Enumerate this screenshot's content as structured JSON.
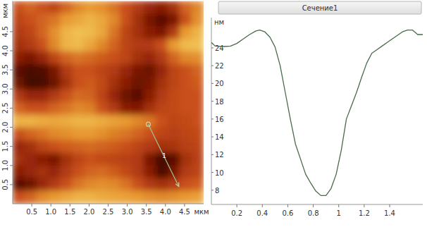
{
  "chart_data": [
    {
      "type": "heatmap",
      "xlabel": "мкм",
      "ylabel": "мкм",
      "xlim": [
        0,
        5
      ],
      "ylim": [
        0,
        5.3
      ],
      "xticks": [
        0.5,
        {
          "value": 1,
          "label": "1.0"
        },
        1.5,
        {
          "value": 2,
          "label": "2.0"
        },
        2.5,
        {
          "value": 3,
          "label": "3.0"
        },
        3.5,
        {
          "value": 4,
          "label": "4.0"
        },
        4.5
      ],
      "yticks": [
        0.5,
        {
          "value": 1,
          "label": "1.0"
        },
        1.5,
        {
          "value": 2,
          "label": "2.0"
        },
        2.5,
        {
          "value": 3,
          "label": "3.0"
        },
        3.5,
        {
          "value": 4,
          "label": "4.0"
        },
        4.5
      ],
      "cells": [
        [
          55,
          60,
          55,
          50,
          60,
          70,
          75,
          72,
          65,
          55,
          45,
          35,
          30,
          40,
          60,
          70
        ],
        [
          50,
          55,
          60,
          65,
          75,
          80,
          85,
          80,
          70,
          55,
          40,
          25,
          15,
          25,
          55,
          72
        ],
        [
          45,
          50,
          60,
          72,
          85,
          90,
          88,
          80,
          65,
          50,
          40,
          30,
          25,
          45,
          75,
          85
        ],
        [
          40,
          45,
          55,
          70,
          85,
          88,
          80,
          70,
          60,
          50,
          45,
          45,
          55,
          75,
          88,
          90
        ],
        [
          30,
          25,
          35,
          50,
          60,
          65,
          62,
          58,
          55,
          50,
          40,
          35,
          45,
          60,
          70,
          72
        ],
        [
          15,
          10,
          12,
          25,
          45,
          55,
          55,
          50,
          45,
          35,
          25,
          20,
          35,
          50,
          55,
          60
        ],
        [
          20,
          8,
          10,
          20,
          40,
          55,
          58,
          52,
          40,
          30,
          20,
          25,
          40,
          50,
          55,
          58
        ],
        [
          45,
          35,
          35,
          45,
          55,
          62,
          60,
          50,
          35,
          20,
          15,
          30,
          45,
          52,
          55,
          55
        ],
        [
          60,
          55,
          55,
          60,
          65,
          70,
          68,
          55,
          45,
          30,
          28,
          40,
          50,
          52,
          55,
          55
        ],
        [
          85,
          85,
          82,
          80,
          82,
          85,
          85,
          82,
          78,
          75,
          70,
          65,
          55,
          50,
          52,
          55
        ],
        [
          55,
          60,
          65,
          70,
          72,
          75,
          75,
          72,
          68,
          65,
          60,
          55,
          50,
          48,
          50,
          52
        ],
        [
          35,
          40,
          50,
          55,
          58,
          60,
          62,
          60,
          58,
          55,
          50,
          45,
          40,
          42,
          48,
          50
        ],
        [
          40,
          35,
          30,
          25,
          40,
          50,
          55,
          52,
          50,
          48,
          45,
          25,
          8,
          15,
          40,
          48
        ],
        [
          30,
          35,
          40,
          35,
          45,
          55,
          60,
          62,
          58,
          52,
          45,
          30,
          10,
          25,
          45,
          50
        ],
        [
          15,
          20,
          35,
          45,
          55,
          65,
          70,
          72,
          70,
          65,
          55,
          45,
          40,
          45,
          55,
          58
        ],
        [
          55,
          60,
          70,
          75,
          80,
          85,
          85,
          82,
          80,
          78,
          75,
          72,
          70,
          72,
          75,
          78
        ]
      ],
      "annotations": [
        {
          "text": "1",
          "x": [
            3.55,
            4.35
          ],
          "y": [
            2.08,
            0.45
          ]
        }
      ]
    },
    {
      "type": "line",
      "title": "Сечение1",
      "ylabel": "нм",
      "color": "#4a6a4a",
      "x": [
        0,
        0.03,
        0.1,
        0.15,
        0.2,
        0.25,
        0.3,
        0.35,
        0.38,
        0.42,
        0.46,
        0.5,
        0.54,
        0.58,
        0.62,
        0.66,
        0.7,
        0.74,
        0.78,
        0.82,
        0.86,
        0.9,
        0.94,
        0.98,
        1.02,
        1.06,
        1.1,
        1.14,
        1.18,
        1.22,
        1.26,
        1.3,
        1.34,
        1.38,
        1.42,
        1.46,
        1.5,
        1.54,
        1.58,
        1.62,
        1.66
      ],
      "values": [
        24.6,
        24.2,
        24.15,
        24.2,
        24.5,
        25.0,
        25.5,
        25.9,
        26.0,
        25.8,
        25.2,
        24.1,
        22.0,
        19.0,
        16.0,
        13.2,
        11.5,
        9.8,
        8.8,
        7.9,
        7.4,
        7.4,
        8.2,
        9.8,
        12.5,
        16.0,
        17.5,
        19.0,
        20.7,
        22.3,
        23.4,
        23.8,
        24.2,
        24.6,
        25.0,
        25.4,
        25.8,
        26.0,
        26.0,
        25.5,
        25.5
      ],
      "xlim": [
        0,
        1.66
      ],
      "ylim": [
        6.4,
        27.4
      ],
      "xticks": [
        0.2,
        0.4,
        0.6,
        0.8,
        1.0,
        1.2,
        1.4
      ],
      "yticks": [
        8,
        10,
        12,
        14,
        16,
        18,
        20,
        22,
        24
      ]
    }
  ]
}
